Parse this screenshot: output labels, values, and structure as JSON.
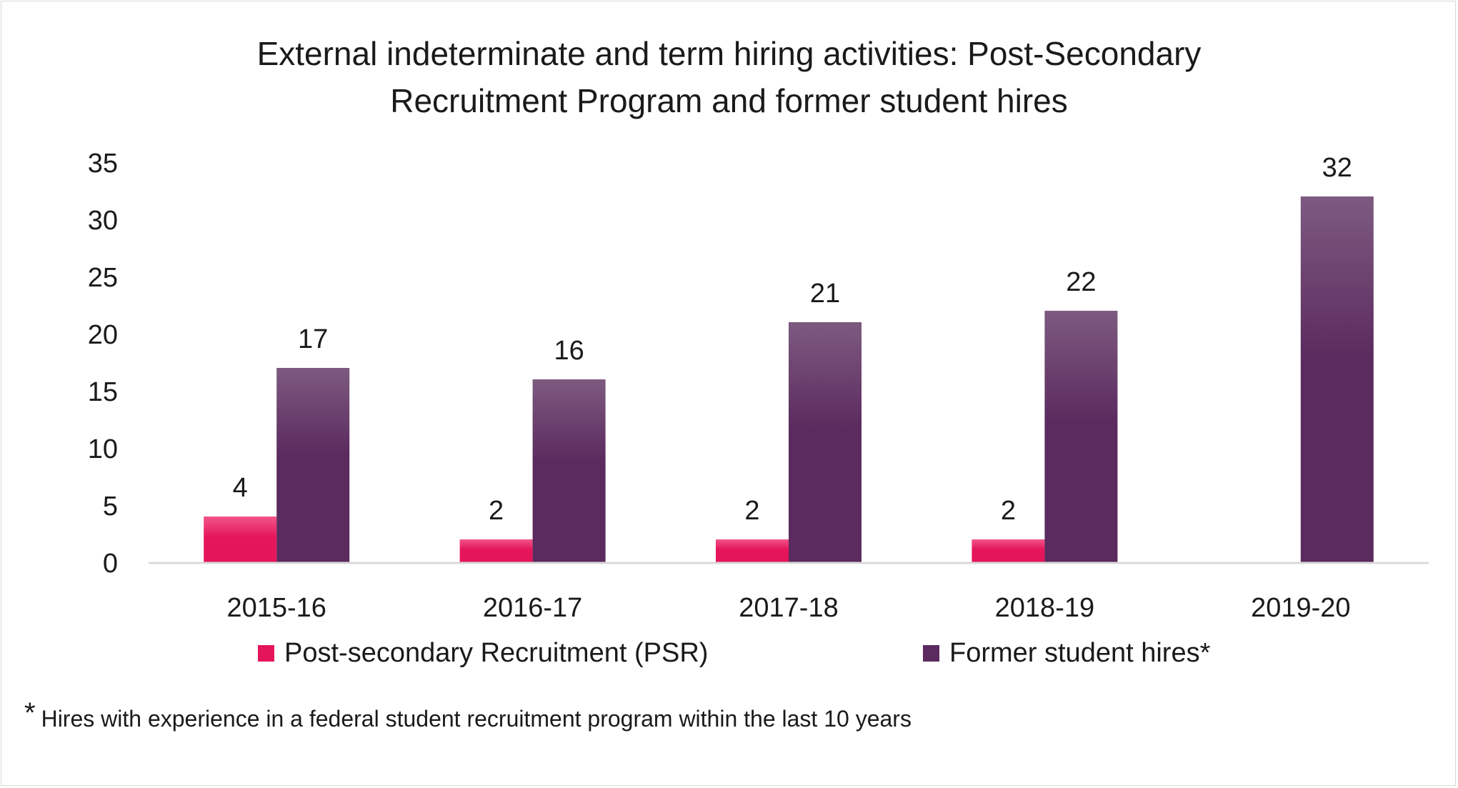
{
  "chart_data": {
    "type": "bar",
    "title_lines": [
      "External indeterminate and term hiring activities: Post-Secondary",
      "Recruitment Program and former student hires"
    ],
    "categories": [
      "2015-16",
      "2016-17",
      "2017-18",
      "2018-19",
      "2019-20"
    ],
    "series": [
      {
        "name": "Post-secondary Recruitment (PSR)",
        "values": [
          4,
          2,
          2,
          2,
          null
        ],
        "color": "#e5155c",
        "color_light": "#f25589"
      },
      {
        "name": "Former student hires*",
        "values": [
          17,
          16,
          21,
          22,
          32
        ],
        "color": "#5b2a5e",
        "color_light": "#7d5a80"
      }
    ],
    "ylim": [
      0,
      35
    ],
    "yticks": [
      0,
      5,
      10,
      15,
      20,
      25,
      30,
      35
    ],
    "xlabel": "",
    "ylabel": "",
    "grid": false,
    "legend_position": "bottom",
    "data_labels": true
  },
  "footnote": {
    "marker": "*",
    "text": "Hires with experience in a federal student recruitment program within the last 10 years"
  },
  "colors": {
    "axis": "#d9d9d9",
    "text": "#1a1a1a"
  }
}
